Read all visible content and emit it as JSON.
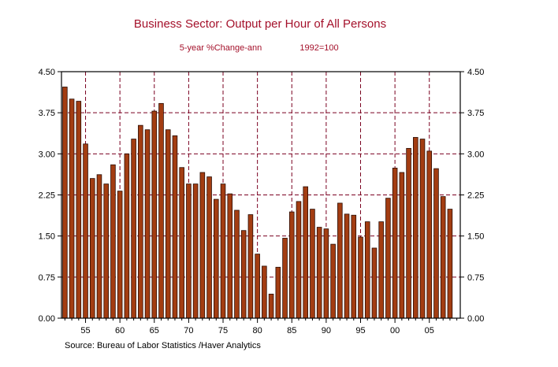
{
  "chart_data": {
    "type": "bar",
    "title": "Business Sector: Output per Hour of All Persons",
    "subtitle_left": "5-year %Change-ann",
    "subtitle_right": "1992=100",
    "source": "Source:  Bureau of Labor Statistics /Haver Analytics",
    "x": [
      1952,
      1953,
      1954,
      1955,
      1956,
      1957,
      1958,
      1959,
      1960,
      1961,
      1962,
      1963,
      1964,
      1965,
      1966,
      1967,
      1968,
      1969,
      1970,
      1971,
      1972,
      1973,
      1974,
      1975,
      1976,
      1977,
      1978,
      1979,
      1980,
      1981,
      1982,
      1983,
      1984,
      1985,
      1986,
      1987,
      1988,
      1989,
      1990,
      1991,
      1992,
      1993,
      1994,
      1995,
      1996,
      1997,
      1998,
      1999,
      2000,
      2001,
      2002,
      2003,
      2004,
      2005,
      2006,
      2007,
      2008
    ],
    "values": [
      4.22,
      4.0,
      3.96,
      3.18,
      2.55,
      2.62,
      2.45,
      2.8,
      2.32,
      3.0,
      3.27,
      3.52,
      3.44,
      3.78,
      3.92,
      3.44,
      3.33,
      2.75,
      2.45,
      2.45,
      2.66,
      2.58,
      2.17,
      2.45,
      2.27,
      1.97,
      1.6,
      1.89,
      1.17,
      0.95,
      0.44,
      0.93,
      1.46,
      1.94,
      2.13,
      2.4,
      1.99,
      1.66,
      1.63,
      1.35,
      2.1,
      1.9,
      1.88,
      1.48,
      1.76,
      1.28,
      1.76,
      2.19,
      2.74,
      2.66,
      3.1,
      3.3,
      3.27,
      3.05,
      2.73,
      2.22,
      1.99
    ],
    "xticks": [
      "55",
      "60",
      "65",
      "70",
      "75",
      "80",
      "85",
      "90",
      "95",
      "00",
      "05"
    ],
    "xtick_years": [
      1955,
      1960,
      1965,
      1970,
      1975,
      1980,
      1985,
      1990,
      1995,
      2000,
      2005
    ],
    "yticks": [
      "0.00",
      "0.75",
      "1.50",
      "2.25",
      "3.00",
      "3.75",
      "4.50"
    ],
    "ylim": [
      0,
      4.5
    ],
    "grid": true,
    "colors": {
      "bar_fill": "#a33d12",
      "bar_stroke": "#2a0c03",
      "grid": "#7a0020",
      "title": "#a4102a",
      "axis": "#000000"
    }
  }
}
